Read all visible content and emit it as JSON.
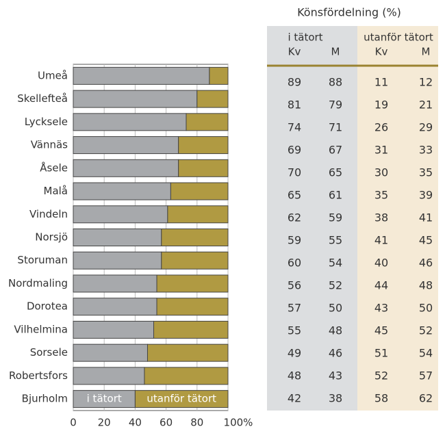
{
  "chart_data": {
    "type": "bar",
    "orientation": "horizontal",
    "stacked": true,
    "categories": [
      "Umeå",
      "Skellefteå",
      "Lycksele",
      "Vännäs",
      "Åsele",
      "Malå",
      "Vindeln",
      "Norsjö",
      "Storuman",
      "Nordmaling",
      "Dorotea",
      "Vilhelmina",
      "Sorsele",
      "Robertsfors",
      "Bjurholm"
    ],
    "series": [
      {
        "name": "i tätort",
        "color": "#a7a9ac",
        "values": [
          88,
          80,
          73,
          68,
          68,
          63,
          61,
          57,
          57,
          54,
          54,
          52,
          48,
          46,
          40
        ]
      },
      {
        "name": "utanför tätort",
        "color": "#b09a42",
        "values": [
          12,
          20,
          27,
          32,
          32,
          37,
          39,
          43,
          43,
          46,
          46,
          48,
          52,
          54,
          60
        ]
      }
    ],
    "xlim": [
      0,
      100
    ],
    "xticks": [
      0,
      20,
      40,
      60,
      80,
      {
        "value": 100,
        "label": "100%"
      }
    ],
    "grid": true
  },
  "table": {
    "title": "Könsfördelning (%)",
    "groups": [
      "i tätort",
      "utanför tätort"
    ],
    "columns": [
      "Kv",
      "M",
      "Kv",
      "M"
    ],
    "rows": [
      [
        89,
        88,
        11,
        12
      ],
      [
        81,
        79,
        19,
        21
      ],
      [
        74,
        71,
        26,
        29
      ],
      [
        69,
        67,
        31,
        33
      ],
      [
        70,
        65,
        30,
        35
      ],
      [
        65,
        61,
        35,
        39
      ],
      [
        62,
        59,
        38,
        41
      ],
      [
        59,
        55,
        41,
        45
      ],
      [
        60,
        54,
        40,
        46
      ],
      [
        56,
        52,
        44,
        48
      ],
      [
        57,
        50,
        43,
        50
      ],
      [
        55,
        48,
        45,
        52
      ],
      [
        49,
        46,
        51,
        54
      ],
      [
        48,
        43,
        52,
        57
      ],
      [
        42,
        38,
        58,
        62
      ]
    ]
  }
}
